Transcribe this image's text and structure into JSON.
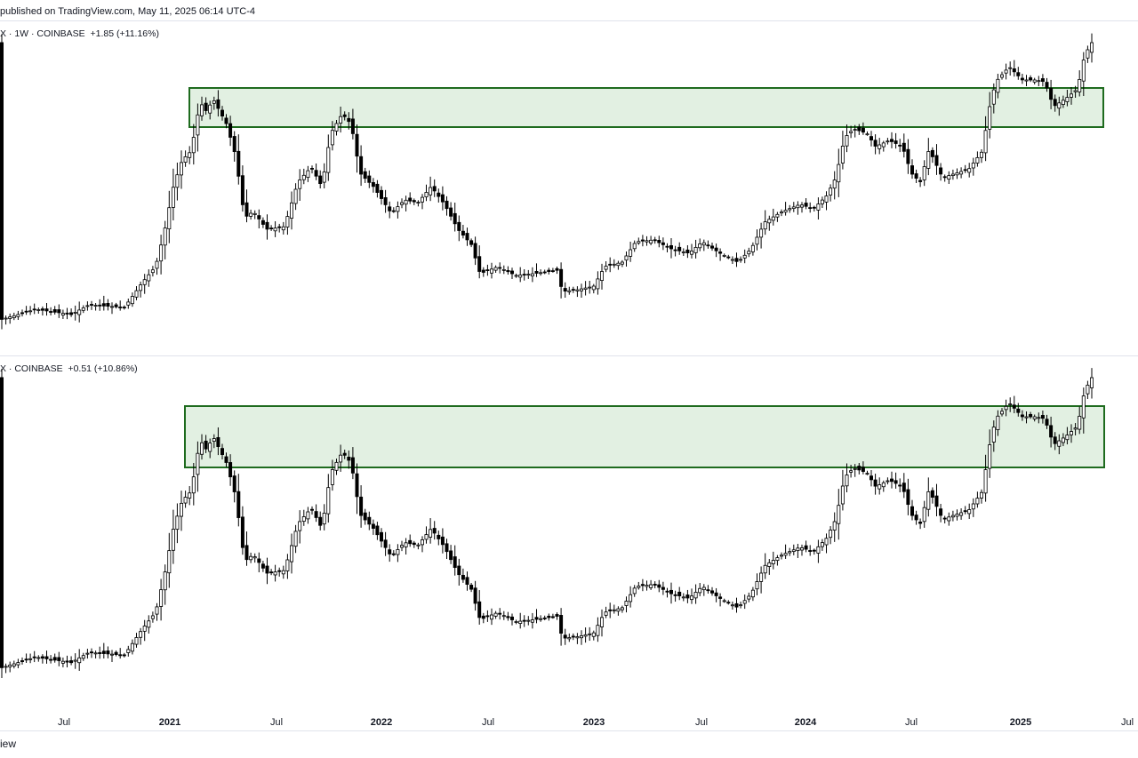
{
  "header": {
    "text": "published on TradingView.com, May 11, 2025 06:14 UTC-4"
  },
  "footer": {
    "text": "iew"
  },
  "colors": {
    "zone_fill": "#e2f0e2",
    "zone_stroke": "#1e6b1e",
    "candle": "#000000",
    "up_body": "#ffffff",
    "down_body": "#000000"
  },
  "chart_data": [
    {
      "type": "candlestick",
      "legend": "X · 1W · COINBASE  +1.85 (+11.16%)",
      "zone": {
        "label": "",
        "shape": "rectangle",
        "from": "2021-02",
        "to": "2025-05"
      },
      "weekly_series": "weekly candlesticks, ~2020-04 to 2025-05; base near lows 2020, peak 2021-04, secondary peak 2021-11, bottom 2022-11, rally 2024-03, breakout 2024-12, last candle strongly up",
      "x_ticks": [
        "Jul",
        "2021",
        "Jul",
        "2022",
        "Jul",
        "2023",
        "Jul",
        "2024",
        "Jul",
        "2025",
        "Jul"
      ]
    },
    {
      "type": "candlestick",
      "legend": "X · COINBASE  +0.51 (+10.86%)",
      "zone": {
        "label": "",
        "shape": "rectangle",
        "from": "2021-02",
        "to": "2025-05"
      },
      "weekly_series": "weekly candlesticks following the same shape as the upper chart",
      "x_ticks": [
        "Jul",
        "2021",
        "Jul",
        "2022",
        "Jul",
        "2023",
        "Jul",
        "2024",
        "Jul",
        "2025",
        "Jul"
      ]
    }
  ],
  "x_axis": {
    "ticks": [
      {
        "label": "Jul",
        "year": false
      },
      {
        "label": "2021",
        "year": true
      },
      {
        "label": "Jul",
        "year": false
      },
      {
        "label": "2022",
        "year": true
      },
      {
        "label": "Jul",
        "year": false
      },
      {
        "label": "2023",
        "year": true
      },
      {
        "label": "Jul",
        "year": false
      },
      {
        "label": "2024",
        "year": true
      },
      {
        "label": "Jul",
        "year": false
      },
      {
        "label": "2025",
        "year": true
      },
      {
        "label": "Jul",
        "year": false
      }
    ]
  }
}
